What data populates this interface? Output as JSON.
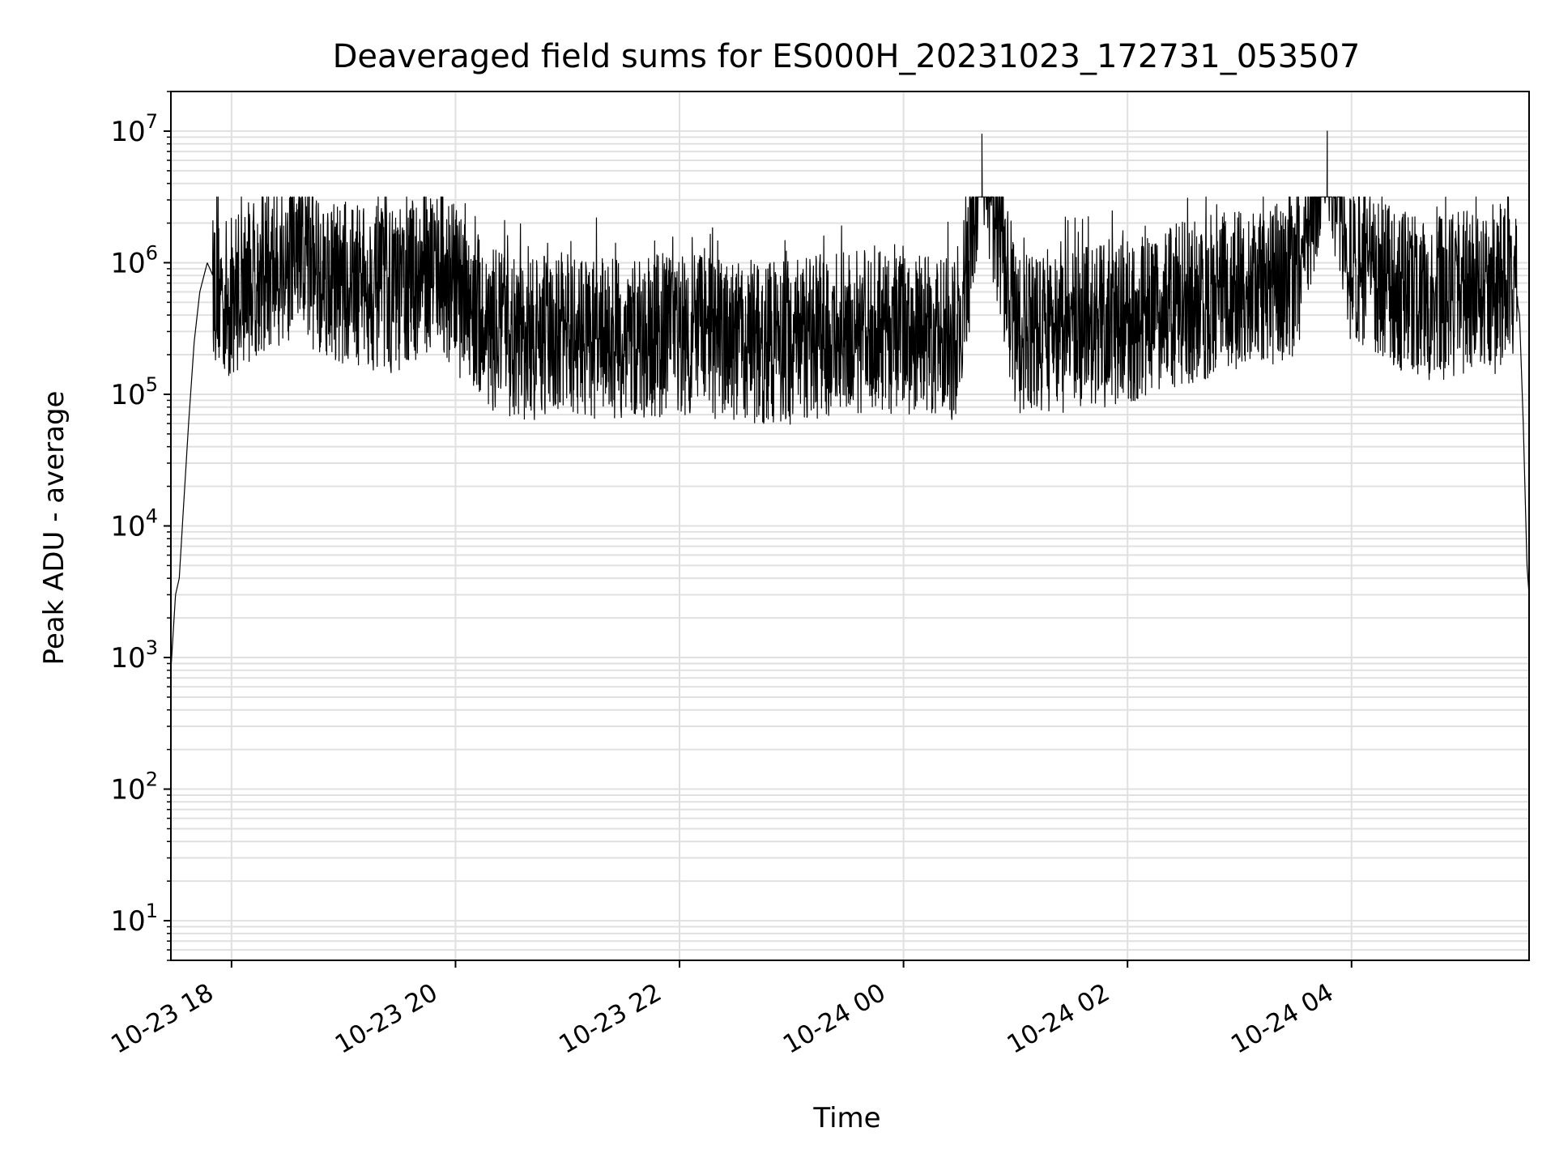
{
  "chart_data": {
    "type": "line",
    "title": "Deaveraged field sums for ES000H_20231023_172731_053507",
    "xlabel": "Time",
    "ylabel": "Peak ADU - average",
    "yscale": "log",
    "ylim": [
      5,
      20000000
    ],
    "xlim": [
      "2023-10-23T17:27:31",
      "2023-10-24T05:35:07"
    ],
    "grid": true,
    "line_color": "#000000",
    "grid_color": "#e0e0e0",
    "x_ticks": [
      {
        "t": "2023-10-23T18:00",
        "label": "10-23 18"
      },
      {
        "t": "2023-10-23T20:00",
        "label": "10-23 20"
      },
      {
        "t": "2023-10-23T22:00",
        "label": "10-23 22"
      },
      {
        "t": "2023-10-24T00:00",
        "label": "10-24 00"
      },
      {
        "t": "2023-10-24T02:00",
        "label": "10-24 02"
      },
      {
        "t": "2023-10-24T04:00",
        "label": "10-24 04"
      }
    ],
    "y_ticks": [
      {
        "v": 10,
        "base": "10",
        "exp": "1"
      },
      {
        "v": 100,
        "base": "10",
        "exp": "2"
      },
      {
        "v": 1000,
        "base": "10",
        "exp": "3"
      },
      {
        "v": 10000,
        "base": "10",
        "exp": "4"
      },
      {
        "v": 100000,
        "base": "10",
        "exp": "5"
      },
      {
        "v": 1000000,
        "base": "10",
        "exp": "6"
      },
      {
        "v": 10000000,
        "base": "10",
        "exp": "7"
      }
    ],
    "series": [
      {
        "x": [
          "2023-10-23T17:27:31",
          "2023-10-23T17:30",
          "2023-10-23T17:32",
          "2023-10-23T17:34",
          "2023-10-23T17:37",
          "2023-10-23T17:40",
          "2023-10-23T17:43",
          "2023-10-23T17:47",
          "2023-10-23T17:50",
          "2023-10-23T17:53",
          "2023-10-23T17:58",
          "2023-10-23T18:05",
          "2023-10-23T18:15",
          "2023-10-23T18:35",
          "2023-10-23T18:45",
          "2023-10-23T19:00",
          "2023-10-23T19:30",
          "2023-10-23T19:50",
          "2023-10-23T20:05",
          "2023-10-23T20:20",
          "2023-10-23T20:40",
          "2023-10-23T21:00",
          "2023-10-23T21:30",
          "2023-10-23T22:00",
          "2023-10-23T22:30",
          "2023-10-23T23:00",
          "2023-10-23T23:30",
          "2023-10-24T00:00",
          "2023-10-24T00:30",
          "2023-10-24T00:42",
          "2023-10-24T01:00",
          "2023-10-24T01:30",
          "2023-10-24T02:00",
          "2023-10-24T02:30",
          "2023-10-24T03:00",
          "2023-10-24T03:30",
          "2023-10-24T03:47",
          "2023-10-24T04:00",
          "2023-10-24T04:20",
          "2023-10-24T04:40",
          "2023-10-24T05:00",
          "2023-10-24T05:15",
          "2023-10-24T05:25",
          "2023-10-24T05:30",
          "2023-10-24T05:32",
          "2023-10-24T05:34",
          "2023-10-24T05:35:07"
        ],
        "y": [
          800,
          3000,
          4000,
          12000,
          60000,
          250000,
          600000,
          1000000,
          800000,
          600000,
          500000,
          700000,
          800000,
          1000000,
          900000,
          700000,
          600000,
          1000000,
          500000,
          300000,
          250000,
          300000,
          250000,
          300000,
          250000,
          250000,
          300000,
          300000,
          250000,
          9500000,
          300000,
          300000,
          350000,
          500000,
          600000,
          800000,
          10000000,
          900000,
          700000,
          500000,
          600000,
          500000,
          1000000,
          400000,
          60000,
          5000,
          3000
        ]
      }
    ]
  }
}
